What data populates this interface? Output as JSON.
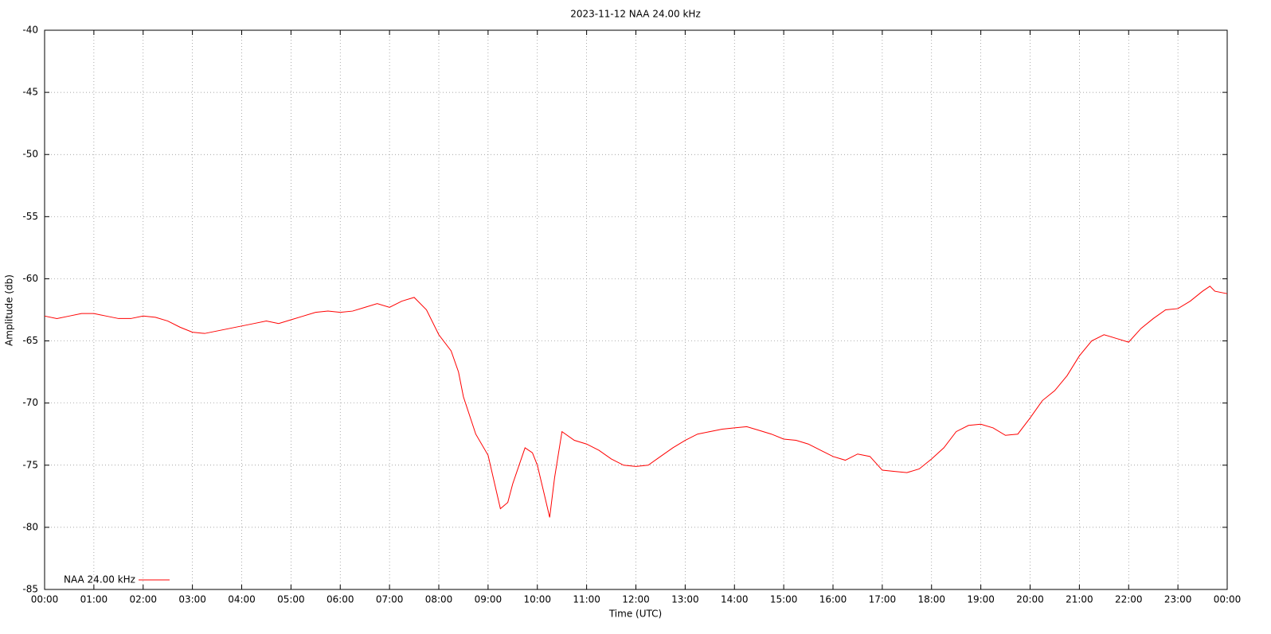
{
  "chart_data": {
    "type": "line",
    "title": "2023-11-12 NAA 24.00 kHz",
    "x_label": "Time (UTC)",
    "y_label": "Amplitude (db)",
    "xlim": [
      0,
      24
    ],
    "xticks": [
      {
        "value": 0,
        "label": "00:00"
      },
      {
        "value": 1,
        "label": "01:00"
      },
      {
        "value": 2,
        "label": "02:00"
      },
      {
        "value": 3,
        "label": "03:00"
      },
      {
        "value": 4,
        "label": "04:00"
      },
      {
        "value": 5,
        "label": "05:00"
      },
      {
        "value": 6,
        "label": "06:00"
      },
      {
        "value": 7,
        "label": "07:00"
      },
      {
        "value": 8,
        "label": "08:00"
      },
      {
        "value": 9,
        "label": "09:00"
      },
      {
        "value": 10,
        "label": "10:00"
      },
      {
        "value": 11,
        "label": "11:00"
      },
      {
        "value": 12,
        "label": "12:00"
      },
      {
        "value": 13,
        "label": "13:00"
      },
      {
        "value": 14,
        "label": "14:00"
      },
      {
        "value": 15,
        "label": "15:00"
      },
      {
        "value": 16,
        "label": "16:00"
      },
      {
        "value": 17,
        "label": "17:00"
      },
      {
        "value": 18,
        "label": "18:00"
      },
      {
        "value": 19,
        "label": "19:00"
      },
      {
        "value": 20,
        "label": "20:00"
      },
      {
        "value": 21,
        "label": "21:00"
      },
      {
        "value": 22,
        "label": "22:00"
      },
      {
        "value": 23,
        "label": "23:00"
      },
      {
        "value": 24,
        "label": "00:00"
      }
    ],
    "ylim": [
      -85,
      -40
    ],
    "yticks": [
      -85,
      -80,
      -75,
      -70,
      -65,
      -60,
      -55,
      -50,
      -45,
      -40
    ],
    "grid": true,
    "legend": "bottom left",
    "x": [
      0,
      0.25,
      0.5,
      0.75,
      1,
      1.25,
      1.5,
      1.75,
      2,
      2.25,
      2.5,
      2.75,
      3,
      3.25,
      3.5,
      3.75,
      4,
      4.25,
      4.5,
      4.75,
      5,
      5.25,
      5.5,
      5.75,
      6,
      6.25,
      6.5,
      6.75,
      7,
      7.25,
      7.5,
      7.75,
      8,
      8.25,
      8.4,
      8.5,
      8.75,
      9,
      9.25,
      9.4,
      9.5,
      9.75,
      9.9,
      10,
      10.15,
      10.25,
      10.35,
      10.5,
      10.75,
      11,
      11.25,
      11.5,
      11.75,
      12,
      12.25,
      12.5,
      12.75,
      13,
      13.25,
      13.5,
      13.75,
      14,
      14.25,
      14.5,
      14.75,
      15,
      15.25,
      15.5,
      15.75,
      16,
      16.25,
      16.5,
      16.75,
      17,
      17.25,
      17.5,
      17.75,
      18,
      18.25,
      18.5,
      18.75,
      19,
      19.25,
      19.5,
      19.75,
      20,
      20.25,
      20.5,
      20.75,
      21,
      21.25,
      21.5,
      21.75,
      22,
      22.25,
      22.5,
      22.75,
      23,
      23.25,
      23.5,
      23.65,
      23.75,
      24
    ],
    "series": [
      {
        "name": "NAA 24.00 kHz",
        "color": "#ff0000",
        "values": [
          -63.0,
          -63.2,
          -63.0,
          -62.8,
          -62.8,
          -63.0,
          -63.2,
          -63.2,
          -63.0,
          -63.1,
          -63.4,
          -63.9,
          -64.3,
          -64.4,
          -64.2,
          -64.0,
          -63.8,
          -63.6,
          -63.4,
          -63.6,
          -63.3,
          -63.0,
          -62.7,
          -62.6,
          -62.7,
          -62.6,
          -62.3,
          -62.0,
          -62.3,
          -61.8,
          -61.5,
          -62.5,
          -64.5,
          -65.8,
          -67.5,
          -69.5,
          -72.5,
          -74.2,
          -78.5,
          -78.0,
          -76.5,
          -73.6,
          -74.0,
          -75.0,
          -77.5,
          -79.2,
          -76.0,
          -72.3,
          -73.0,
          -73.3,
          -73.8,
          -74.5,
          -75.0,
          -75.1,
          -75.0,
          -74.3,
          -73.6,
          -73.0,
          -72.5,
          -72.3,
          -72.1,
          -72.0,
          -71.9,
          -72.2,
          -72.5,
          -72.9,
          -73.0,
          -73.3,
          -73.8,
          -74.3,
          -74.6,
          -74.1,
          -74.3,
          -75.4,
          -75.5,
          -75.6,
          -75.3,
          -74.5,
          -73.6,
          -72.3,
          -71.8,
          -71.7,
          -72.0,
          -72.6,
          -72.5,
          -71.2,
          -69.8,
          -69.0,
          -67.8,
          -66.2,
          -65.0,
          -64.5,
          -64.8,
          -65.1,
          -64.0,
          -63.2,
          -62.5,
          -62.4,
          -61.8,
          -61.0,
          -60.6,
          -61.0,
          -61.2
        ]
      }
    ]
  }
}
